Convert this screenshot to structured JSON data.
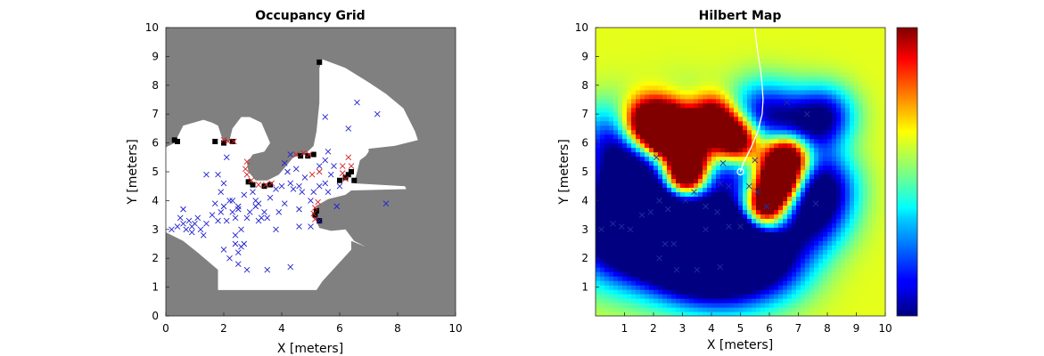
{
  "chart_data": [
    {
      "type": "heatmap",
      "title": "Occupancy Grid",
      "xlabel": "X [meters]",
      "ylabel": "Y [meters]",
      "xlim": [
        0,
        10
      ],
      "ylim": [
        0,
        10
      ],
      "xticks": [
        "0",
        "2",
        "4",
        "6",
        "8",
        "10"
      ],
      "yticks": [
        "0",
        "1",
        "2",
        "3",
        "4",
        "5",
        "6",
        "7",
        "8",
        "9",
        "10"
      ],
      "colors": {
        "unknown": "#808080",
        "free": "#ffffff",
        "occupied": "#000000",
        "hit_marker": "#d62020",
        "sample_marker": "#2020d0"
      },
      "free_region": [
        [
          0,
          2.9
        ],
        [
          0.6,
          2.6
        ],
        [
          1.1,
          2.2
        ],
        [
          1.8,
          1.6
        ],
        [
          1.8,
          0.9
        ],
        [
          5.2,
          0.9
        ],
        [
          5.4,
          1.2
        ],
        [
          6.4,
          2.3
        ],
        [
          6.4,
          2.6
        ],
        [
          6.9,
          2.4
        ],
        [
          6.5,
          2.6
        ],
        [
          6.2,
          3.0
        ],
        [
          5.7,
          2.95
        ],
        [
          5.3,
          3.05
        ],
        [
          5.1,
          3.5
        ],
        [
          5.25,
          3.85
        ],
        [
          5.6,
          4.05
        ],
        [
          6.2,
          4.2
        ],
        [
          6.4,
          4.35
        ],
        [
          8.3,
          4.4
        ],
        [
          8.25,
          4.5
        ],
        [
          6.5,
          4.6
        ],
        [
          6.6,
          5.0
        ],
        [
          6.7,
          5.4
        ],
        [
          6.9,
          5.55
        ],
        [
          7.0,
          5.7
        ],
        [
          7.0,
          5.8
        ],
        [
          7.9,
          5.9
        ],
        [
          8.7,
          6.1
        ],
        [
          8.6,
          6.4
        ],
        [
          8.2,
          7.2
        ],
        [
          7.6,
          7.7
        ],
        [
          7.0,
          8.1
        ],
        [
          6.2,
          8.6
        ],
        [
          5.4,
          8.9
        ],
        [
          5.3,
          8.6
        ],
        [
          5.3,
          7.4
        ],
        [
          5.2,
          6.4
        ],
        [
          5.1,
          5.9
        ],
        [
          4.8,
          5.6
        ],
        [
          4.4,
          5.5
        ],
        [
          3.9,
          4.9
        ],
        [
          3.5,
          4.7
        ],
        [
          3.1,
          4.7
        ],
        [
          2.85,
          5.0
        ],
        [
          2.8,
          5.3
        ],
        [
          3.0,
          5.6
        ],
        [
          3.4,
          5.7
        ],
        [
          3.6,
          6.0
        ],
        [
          3.3,
          6.7
        ],
        [
          2.9,
          6.9
        ],
        [
          2.6,
          6.9
        ],
        [
          2.3,
          6.5
        ],
        [
          2.2,
          6.1
        ],
        [
          2.0,
          6.0
        ],
        [
          1.9,
          6.3
        ],
        [
          1.8,
          6.6
        ],
        [
          1.6,
          6.7
        ],
        [
          1.3,
          6.8
        ],
        [
          0.6,
          6.6
        ],
        [
          0.4,
          6.2
        ],
        [
          0.3,
          6.0
        ],
        [
          0,
          5.85
        ]
      ],
      "occupied_cells": [
        [
          5.3,
          8.8
        ],
        [
          6.5,
          4.7
        ],
        [
          6.3,
          4.9
        ],
        [
          6.4,
          5.0
        ],
        [
          0.3,
          6.1
        ],
        [
          0.4,
          6.05
        ],
        [
          1.7,
          6.05
        ],
        [
          2.0,
          6.0
        ],
        [
          2.3,
          6.05
        ],
        [
          2.85,
          4.65
        ],
        [
          3.0,
          4.55
        ],
        [
          3.4,
          4.5
        ],
        [
          3.6,
          4.55
        ],
        [
          4.65,
          5.55
        ],
        [
          4.9,
          5.55
        ],
        [
          5.1,
          5.6
        ],
        [
          5.2,
          3.65
        ],
        [
          5.15,
          3.5
        ],
        [
          5.3,
          3.3
        ],
        [
          6.0,
          4.7
        ],
        [
          6.2,
          4.8
        ]
      ],
      "hit_points": [
        [
          2.0,
          6.1
        ],
        [
          2.15,
          6.05
        ],
        [
          2.35,
          6.05
        ],
        [
          2.8,
          5.35
        ],
        [
          2.75,
          5.1
        ],
        [
          2.8,
          4.9
        ],
        [
          2.95,
          4.7
        ],
        [
          3.2,
          4.55
        ],
        [
          3.45,
          4.55
        ],
        [
          3.65,
          4.6
        ],
        [
          4.5,
          5.6
        ],
        [
          4.75,
          5.65
        ],
        [
          4.95,
          5.6
        ],
        [
          5.05,
          4.9
        ],
        [
          5.3,
          5.0
        ],
        [
          5.25,
          3.95
        ],
        [
          5.15,
          3.75
        ],
        [
          5.1,
          3.55
        ],
        [
          5.15,
          3.35
        ],
        [
          6.1,
          5.2
        ],
        [
          6.1,
          4.95
        ],
        [
          6.2,
          4.75
        ],
        [
          6.3,
          5.5
        ],
        [
          6.4,
          5.2
        ]
      ],
      "sample_points": [
        [
          0.2,
          3.0
        ],
        [
          0.4,
          3.1
        ],
        [
          0.6,
          3.2
        ],
        [
          0.7,
          3.0
        ],
        [
          0.8,
          3.3
        ],
        [
          0.9,
          3.1
        ],
        [
          1.0,
          3.2
        ],
        [
          1.1,
          3.4
        ],
        [
          1.2,
          3.0
        ],
        [
          0.5,
          3.4
        ],
        [
          0.6,
          3.7
        ],
        [
          0.9,
          2.9
        ],
        [
          1.3,
          2.8
        ],
        [
          1.4,
          3.2
        ],
        [
          1.6,
          3.5
        ],
        [
          1.7,
          3.9
        ],
        [
          1.8,
          3.3
        ],
        [
          1.9,
          3.6
        ],
        [
          2.0,
          3.8
        ],
        [
          2.1,
          3.3
        ],
        [
          2.2,
          4.0
        ],
        [
          2.3,
          3.6
        ],
        [
          2.4,
          3.4
        ],
        [
          2.5,
          3.7
        ],
        [
          2.6,
          3.0
        ],
        [
          2.4,
          2.5
        ],
        [
          2.5,
          2.2
        ],
        [
          2.6,
          2.4
        ],
        [
          2.7,
          2.5
        ],
        [
          2.4,
          2.8
        ],
        [
          2.0,
          2.3
        ],
        [
          2.2,
          2.0
        ],
        [
          2.5,
          1.8
        ],
        [
          2.8,
          1.6
        ],
        [
          3.5,
          1.6
        ],
        [
          4.3,
          1.7
        ],
        [
          1.4,
          4.9
        ],
        [
          1.8,
          4.9
        ],
        [
          1.9,
          4.3
        ],
        [
          2.0,
          4.6
        ],
        [
          2.1,
          5.5
        ],
        [
          2.3,
          4.0
        ],
        [
          2.5,
          3.8
        ],
        [
          2.7,
          4.2
        ],
        [
          2.9,
          3.6
        ],
        [
          3.1,
          3.8
        ],
        [
          3.1,
          4.0
        ],
        [
          3.2,
          3.3
        ],
        [
          3.3,
          3.4
        ],
        [
          3.4,
          3.6
        ],
        [
          3.0,
          4.3
        ],
        [
          3.6,
          4.1
        ],
        [
          3.8,
          4.4
        ],
        [
          3.9,
          3.6
        ],
        [
          4.1,
          3.9
        ],
        [
          4.0,
          4.5
        ],
        [
          4.3,
          4.6
        ],
        [
          4.4,
          4.4
        ],
        [
          4.6,
          4.5
        ],
        [
          4.7,
          4.3
        ],
        [
          4.8,
          4.8
        ],
        [
          4.2,
          5.0
        ],
        [
          4.5,
          5.1
        ],
        [
          4.1,
          5.3
        ],
        [
          4.3,
          5.6
        ],
        [
          5.3,
          4.5
        ],
        [
          5.1,
          4.3
        ],
        [
          5.5,
          4.6
        ],
        [
          5.6,
          4.3
        ],
        [
          5.3,
          5.2
        ],
        [
          5.5,
          5.4
        ],
        [
          5.6,
          5.7
        ],
        [
          5.8,
          5.2
        ],
        [
          5.7,
          4.9
        ],
        [
          6.0,
          4.5
        ],
        [
          5.9,
          3.8
        ],
        [
          5.0,
          3.1
        ],
        [
          5.3,
          3.3
        ],
        [
          4.6,
          3.1
        ],
        [
          3.8,
          3.0
        ],
        [
          3.5,
          3.4
        ],
        [
          6.6,
          7.4
        ],
        [
          7.3,
          7.0
        ],
        [
          6.3,
          6.5
        ],
        [
          5.5,
          6.9
        ],
        [
          7.6,
          3.9
        ],
        [
          5.0,
          4.0
        ],
        [
          4.6,
          3.7
        ],
        [
          3.2,
          3.9
        ],
        [
          2.8,
          3.4
        ]
      ]
    },
    {
      "type": "heatmap",
      "title": "Hilbert Map",
      "xlabel": "X [meters]",
      "ylabel": "Y [meters]",
      "xlim": [
        0,
        10
      ],
      "ylim": [
        0,
        10
      ],
      "xticks": [
        "1",
        "2",
        "3",
        "4",
        "5",
        "6",
        "7",
        "8",
        "9",
        "10"
      ],
      "yticks": [
        "1",
        "2",
        "3",
        "4",
        "5",
        "6",
        "7",
        "8",
        "9",
        "10"
      ],
      "colormap": "jet",
      "colorbar": true,
      "background_level": 0.6,
      "free_blobs": [
        [
          0.6,
          3.0,
          1.3,
          -0.6
        ],
        [
          1.6,
          3.5,
          1.1,
          -0.55
        ],
        [
          2.5,
          2.4,
          1.1,
          -0.55
        ],
        [
          3.5,
          1.8,
          1.0,
          -0.5
        ],
        [
          4.8,
          1.6,
          1.0,
          -0.5
        ],
        [
          6.2,
          2.0,
          1.0,
          -0.5
        ],
        [
          7.5,
          3.5,
          0.9,
          -0.5
        ],
        [
          7.9,
          4.6,
          0.8,
          -0.45
        ],
        [
          7.0,
          6.5,
          0.9,
          -0.45
        ],
        [
          8.0,
          7.0,
          0.7,
          -0.4
        ],
        [
          5.7,
          7.1,
          0.8,
          -0.4
        ],
        [
          4.5,
          5.2,
          0.8,
          -0.45
        ],
        [
          3.0,
          6.4,
          1.0,
          -0.3
        ],
        [
          1.2,
          5.5,
          1.0,
          -0.4
        ],
        [
          0.7,
          6.3,
          0.9,
          -0.3
        ],
        [
          4.0,
          3.0,
          1.0,
          -0.5
        ],
        [
          5.2,
          3.2,
          0.8,
          -0.45
        ]
      ],
      "occupied_blobs": [
        [
          1.8,
          6.6,
          0.65,
          1.0
        ],
        [
          2.6,
          6.5,
          0.6,
          1.0
        ],
        [
          3.2,
          5.5,
          0.6,
          0.95
        ],
        [
          3.1,
          4.8,
          0.45,
          0.7
        ],
        [
          4.0,
          6.8,
          0.55,
          0.8
        ],
        [
          4.8,
          6.1,
          0.55,
          0.95
        ],
        [
          6.6,
          5.5,
          0.55,
          1.0
        ],
        [
          6.3,
          4.6,
          0.5,
          0.9
        ],
        [
          5.8,
          3.7,
          0.55,
          1.0
        ],
        [
          2.3,
          6.1,
          0.3,
          0.3
        ]
      ],
      "trajectory": [
        [
          5.5,
          10.0
        ],
        [
          5.55,
          9.5
        ],
        [
          5.62,
          9.0
        ],
        [
          5.7,
          8.5
        ],
        [
          5.75,
          8.0
        ],
        [
          5.78,
          7.5
        ],
        [
          5.75,
          7.0
        ],
        [
          5.6,
          6.4
        ],
        [
          5.35,
          5.8
        ],
        [
          5.1,
          5.3
        ],
        [
          5.0,
          5.0
        ]
      ],
      "sample_points": [
        [
          0.2,
          3.0
        ],
        [
          0.6,
          3.2
        ],
        [
          0.9,
          3.1
        ],
        [
          1.2,
          3.0
        ],
        [
          1.6,
          3.5
        ],
        [
          1.9,
          3.6
        ],
        [
          2.2,
          4.0
        ],
        [
          2.5,
          3.7
        ],
        [
          2.4,
          2.5
        ],
        [
          2.7,
          2.5
        ],
        [
          2.2,
          2.0
        ],
        [
          2.8,
          1.6
        ],
        [
          3.5,
          1.6
        ],
        [
          4.3,
          1.7
        ],
        [
          2.1,
          5.5
        ],
        [
          3.1,
          4.0
        ],
        [
          3.4,
          4.3
        ],
        [
          3.8,
          3.8
        ],
        [
          4.2,
          3.6
        ],
        [
          4.3,
          4.6
        ],
        [
          4.6,
          4.5
        ],
        [
          4.4,
          5.3
        ],
        [
          5.3,
          4.5
        ],
        [
          5.6,
          4.3
        ],
        [
          5.5,
          5.4
        ],
        [
          5.9,
          3.8
        ],
        [
          5.0,
          3.1
        ],
        [
          4.6,
          3.1
        ],
        [
          3.8,
          3.0
        ],
        [
          7.6,
          3.9
        ],
        [
          6.6,
          7.4
        ],
        [
          7.3,
          7.0
        ]
      ]
    }
  ]
}
